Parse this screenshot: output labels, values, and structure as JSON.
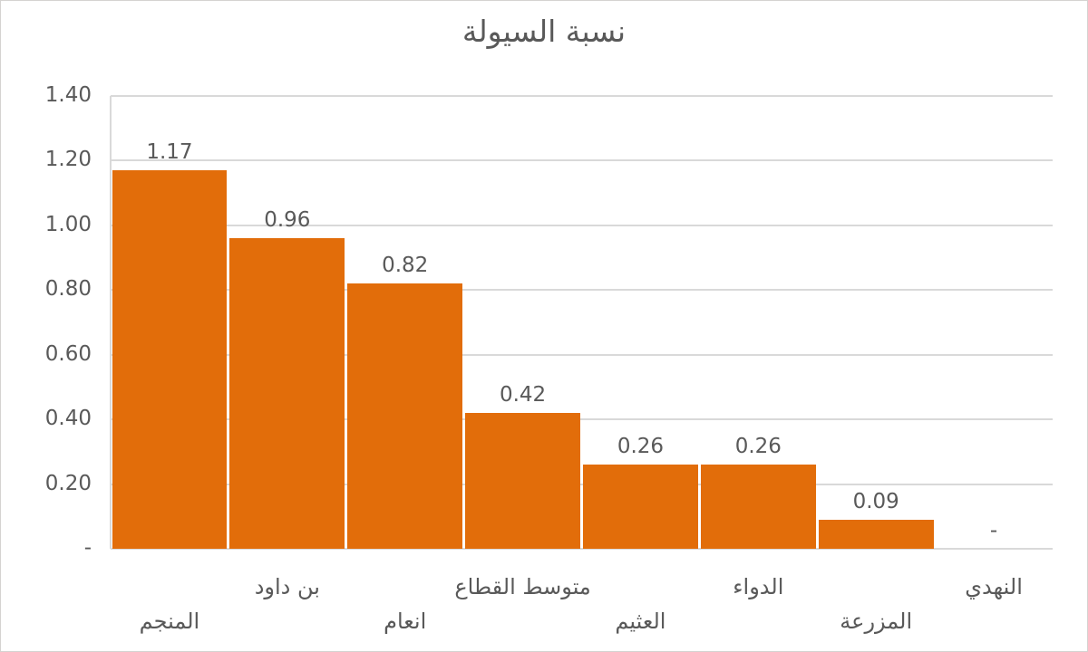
{
  "chart_data": {
    "type": "bar",
    "title": "نسبة السيولة",
    "categories": [
      "المنجم",
      "بن داود",
      "انعام",
      "متوسط القطاع",
      "العثيم",
      "الدواء",
      "المزرعة",
      "النهدي"
    ],
    "values": [
      1.17,
      0.96,
      0.82,
      0.42,
      0.26,
      0.26,
      0.09,
      0
    ],
    "value_labels": [
      "1.17",
      "0.96",
      "0.82",
      "0.42",
      "0.26",
      "0.26",
      "0.09",
      "-"
    ],
    "xlabel": "",
    "ylabel": "",
    "ylim": [
      0,
      1.4
    ],
    "y_ticks": [
      {
        "value": 1.4,
        "label": "1.40"
      },
      {
        "value": 1.2,
        "label": "1.20"
      },
      {
        "value": 1.0,
        "label": "1.00"
      },
      {
        "value": 0.8,
        "label": "0.80"
      },
      {
        "value": 0.6,
        "label": "0.60"
      },
      {
        "value": 0.4,
        "label": "0.40"
      },
      {
        "value": 0.2,
        "label": "0.20"
      },
      {
        "value": 0.0,
        "label": "-"
      }
    ],
    "grid": true,
    "legend": "none",
    "label_stagger_rows": {
      "near_row_indices": [
        1,
        3,
        5,
        7
      ],
      "far_row_indices": [
        0,
        2,
        4,
        6
      ]
    },
    "colors": {
      "bar": "#e26d0a",
      "grid": "#d9d9d9",
      "text": "#595959",
      "background": "#ffffff",
      "border": "#d5d3d1"
    }
  }
}
